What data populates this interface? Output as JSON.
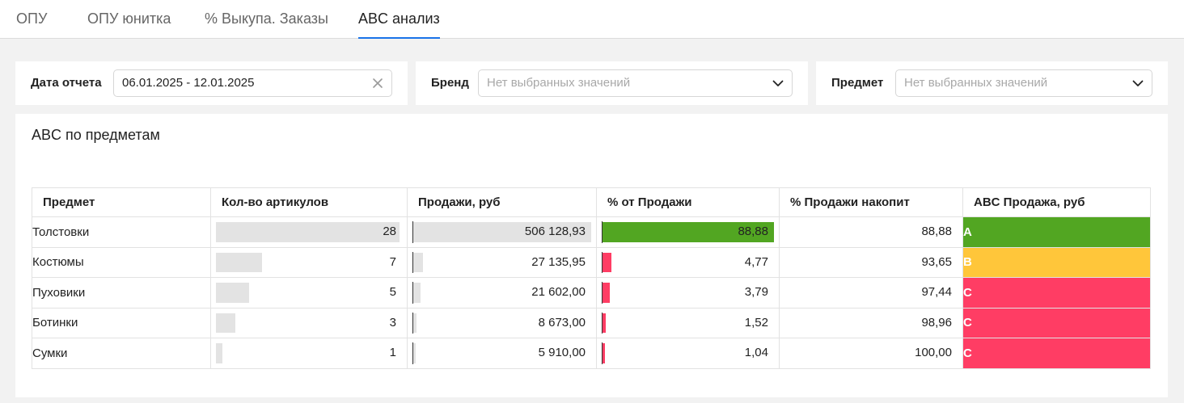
{
  "tabs": [
    {
      "label": "ОПУ",
      "active": false
    },
    {
      "label": "ОПУ юнитка",
      "active": false
    },
    {
      "label": "% Выкупа. Заказы",
      "active": false
    },
    {
      "label": "ABC анализ",
      "active": true
    }
  ],
  "filters": {
    "date": {
      "label": "Дата отчета",
      "value": "06.01.2025 - 12.01.2025"
    },
    "brand": {
      "label": "Бренд",
      "placeholder": "Нет выбранных значений"
    },
    "subject": {
      "label": "Предмет",
      "placeholder": "Нет выбранных значений"
    }
  },
  "panel": {
    "title": "ABC по предметам",
    "columns": [
      "Предмет",
      "Кол-во артикулов",
      "Продажи, руб",
      "% от Продажи",
      "% Продажи накопит",
      "ABC Продажа, руб"
    ],
    "rows": [
      {
        "subject": "Толстовки",
        "count": "28",
        "count_n": 28,
        "sales": "506 128,93",
        "sales_n": 506128.93,
        "pct": "88,88",
        "pct_n": 88.88,
        "cum": "88,88",
        "abc": "A",
        "abc_color": "#52a622",
        "pct_color": "#52a622"
      },
      {
        "subject": "Костюмы",
        "count": "7",
        "count_n": 7,
        "sales": "27 135,95",
        "sales_n": 27135.95,
        "pct": "4,77",
        "pct_n": 4.77,
        "cum": "93,65",
        "abc": "B",
        "abc_color": "#ffc63a",
        "pct_color": "#ff3d64"
      },
      {
        "subject": "Пуховики",
        "count": "5",
        "count_n": 5,
        "sales": "21 602,00",
        "sales_n": 21602.0,
        "pct": "3,79",
        "pct_n": 3.79,
        "cum": "97,44",
        "abc": "C",
        "abc_color": "#ff3d64",
        "pct_color": "#ff3d64"
      },
      {
        "subject": "Ботинки",
        "count": "3",
        "count_n": 3,
        "sales": "8 673,00",
        "sales_n": 8673.0,
        "pct": "1,52",
        "pct_n": 1.52,
        "cum": "98,96",
        "abc": "C",
        "abc_color": "#ff3d64",
        "pct_color": "#ff3d64"
      },
      {
        "subject": "Сумки",
        "count": "1",
        "count_n": 1,
        "sales": "5 910,00",
        "sales_n": 5910.0,
        "pct": "1,04",
        "pct_n": 1.04,
        "cum": "100,00",
        "abc": "C",
        "abc_color": "#ff3d64",
        "pct_color": "#ff3d64"
      }
    ]
  },
  "icons": {
    "clear": "close-icon",
    "dropdown": "chevron-down-icon"
  },
  "colors": {
    "accent": "#1a73e8",
    "a": "#52a622",
    "b": "#ffc63a",
    "c": "#ff3d64"
  }
}
